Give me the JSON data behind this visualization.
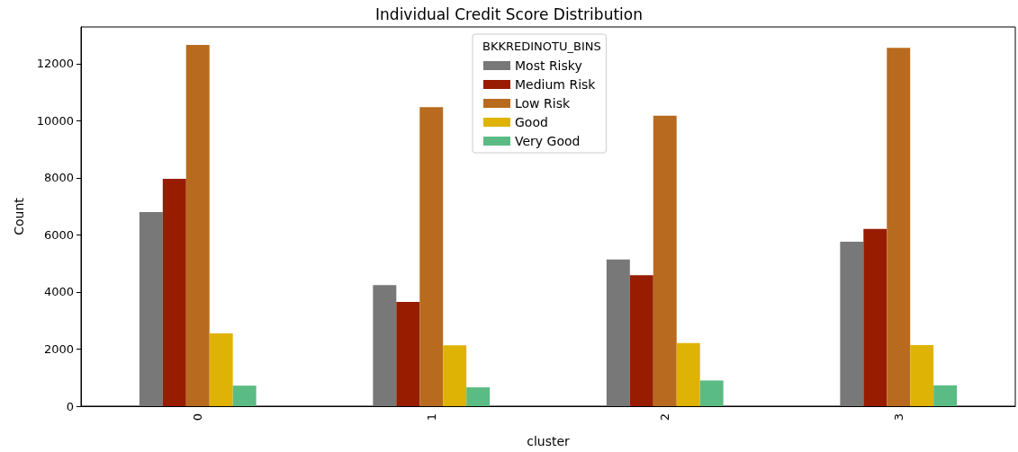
{
  "chart_data": {
    "type": "bar",
    "title": "Individual Credit Score Distribution",
    "xlabel": "cluster",
    "ylabel": "Count",
    "legend_title": "BKKREDINOTU_BINS",
    "categories": [
      "0",
      "1",
      "2",
      "3"
    ],
    "series": [
      {
        "name": "Most Risky",
        "color": "#787878",
        "values": [
          6800,
          4240,
          5140,
          5760
        ]
      },
      {
        "name": "Medium Risk",
        "color": "#971c00",
        "values": [
          7970,
          3650,
          4590,
          6210
        ]
      },
      {
        "name": "Low Risk",
        "color": "#b86b1e",
        "values": [
          12660,
          10480,
          10180,
          12560
        ]
      },
      {
        "name": "Good",
        "color": "#dfb305",
        "values": [
          2550,
          2130,
          2210,
          2140
        ]
      },
      {
        "name": "Very Good",
        "color": "#5bbb84",
        "values": [
          720,
          660,
          900,
          730
        ]
      }
    ],
    "ylim": [
      0,
      13290
    ],
    "yticks": [
      0,
      2000,
      4000,
      6000,
      8000,
      10000,
      12000
    ],
    "grid": false,
    "legend": "top"
  }
}
